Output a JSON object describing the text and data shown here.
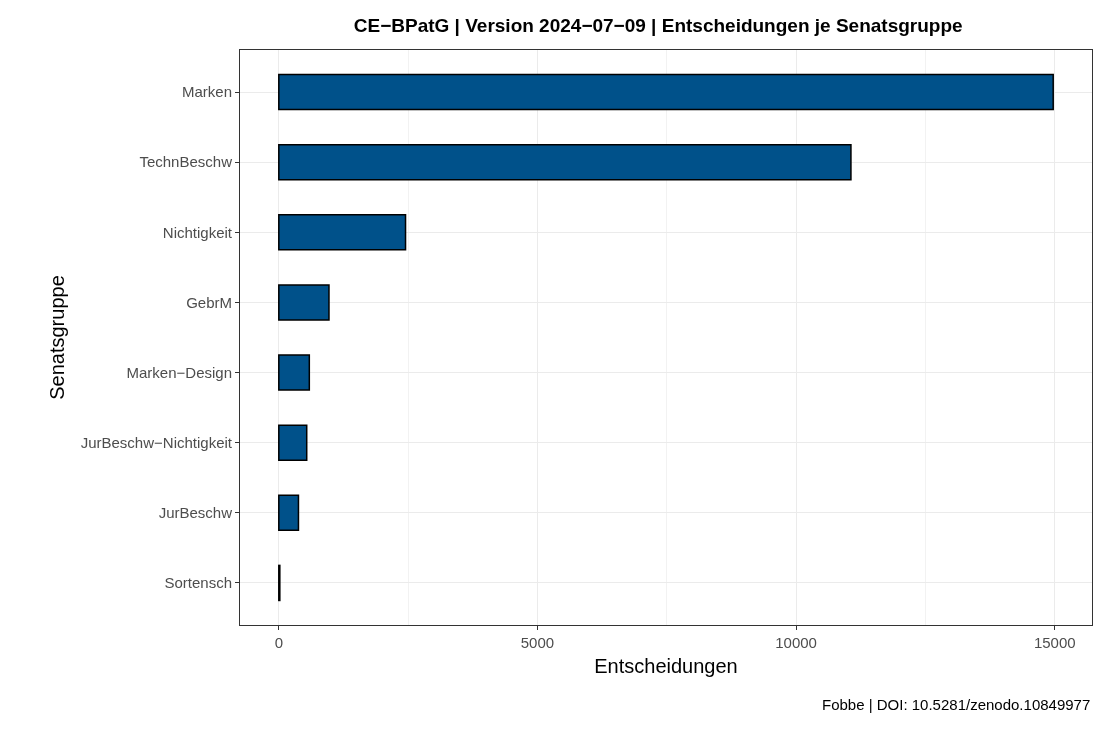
{
  "chart_data": {
    "type": "bar",
    "orientation": "horizontal",
    "title": "CE−BPatG | Version 2024−07−09 | Entscheidungen je Senatsgruppe",
    "xlabel": "Entscheidungen",
    "ylabel": "Senatsgruppe",
    "categories": [
      "Marken",
      "TechnBeschw",
      "Nichtigkeit",
      "GebrM",
      "Marken−Design",
      "JurBeschw−Nichtigkeit",
      "JurBeschw",
      "Sortensch"
    ],
    "values": [
      14970,
      11060,
      2450,
      970,
      590,
      540,
      380,
      20
    ],
    "color": "#00518a",
    "xlim": [
      -750,
      15720
    ],
    "xticks": [
      0,
      5000,
      10000,
      15000
    ],
    "grid": true,
    "annotations": [
      "Fobbe | DOI: 10.5281/zenodo.10849977"
    ]
  }
}
